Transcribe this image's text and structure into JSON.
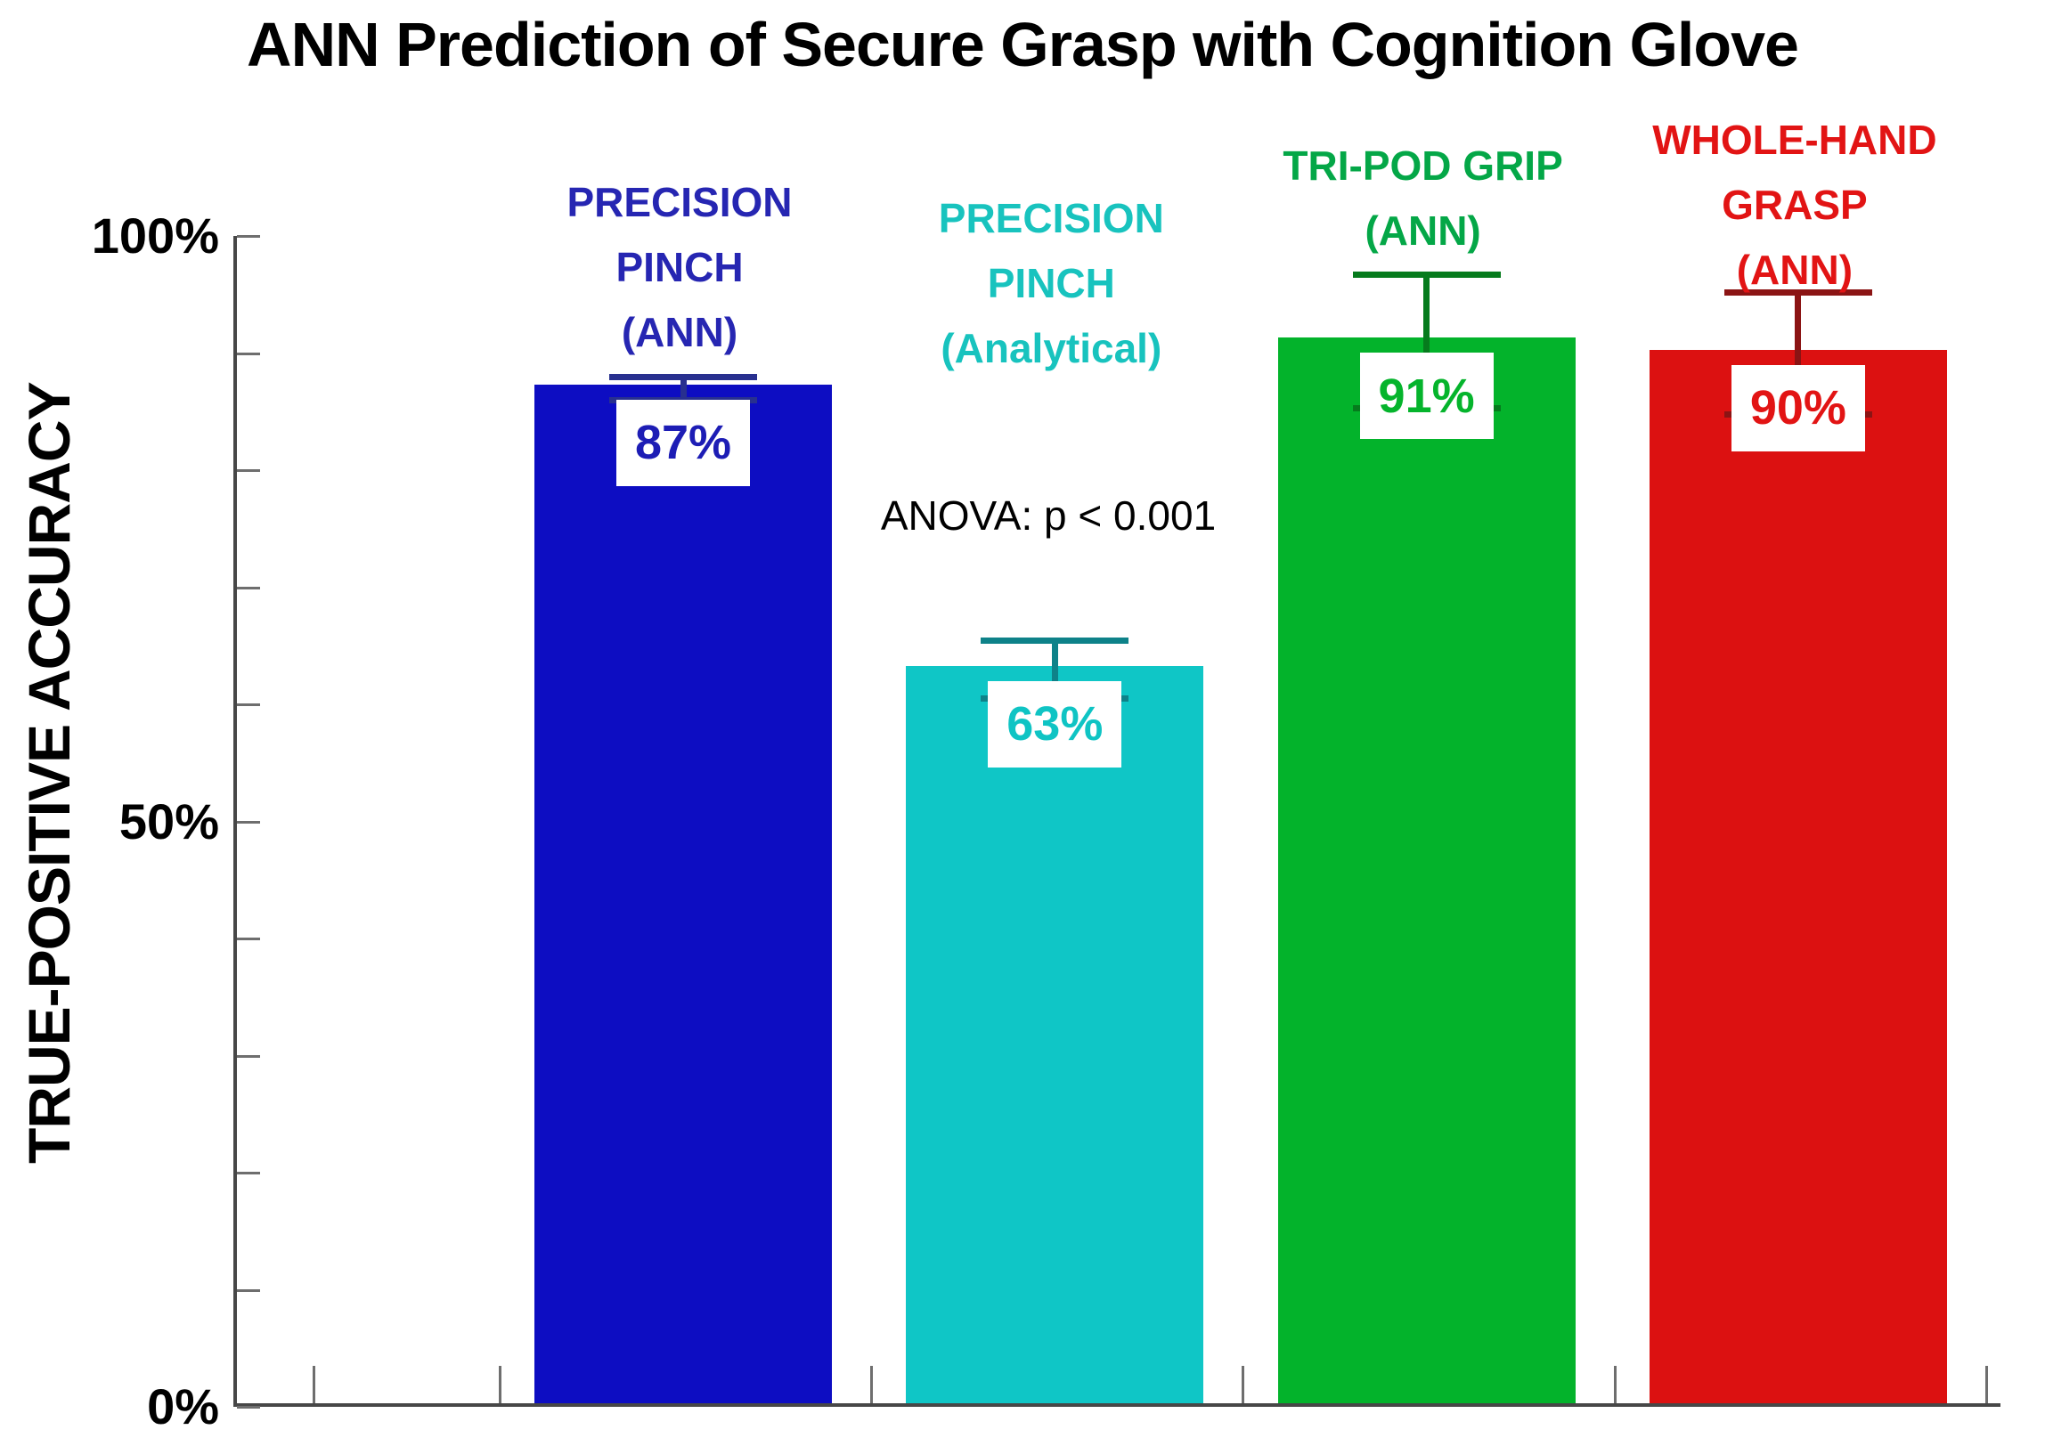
{
  "chart_data": {
    "type": "bar",
    "title": "ANN Prediction of Secure Grasp with Cognition Glove",
    "ylabel": "TRUE-POSITIVE ACCURACY",
    "annotation": "ANOVA: p < 0.001",
    "ylim": [
      0,
      100
    ],
    "ytick_labels": [
      "100%",
      "50%",
      "0%"
    ],
    "ytick_values": [
      100,
      50,
      0
    ],
    "y_minor_tick_step": 10,
    "x_minor_tick_count": 10,
    "grid": false,
    "legend": "none",
    "axis_color": "#474747",
    "tick_color": "#6E6E6E",
    "text_color": "#000000",
    "categories": [
      {
        "id": "precision-pinch-ann",
        "label_lines": [
          "PRECISION",
          "PINCH",
          "(ANN)"
        ],
        "value": 87,
        "value_label": "87%",
        "error": 1.0,
        "bar_color": "#0D0DC2",
        "error_color": "#28308F",
        "label_color": "#2626B2",
        "value_color": "#1D1DB5"
      },
      {
        "id": "precision-pinch-analytical",
        "label_lines": [
          "PRECISION",
          "PINCH",
          "(Analytical)"
        ],
        "value": 63,
        "value_label": "63%",
        "error": 2.5,
        "bar_color": "#0FC6C6",
        "error_color": "#0E8289",
        "label_color": "#18C3BE",
        "value_color": "#0FC4C4"
      },
      {
        "id": "tri-pod-grip-ann",
        "label_lines": [
          "TRI-POD GRIP",
          "(ANN)"
        ],
        "value": 91,
        "value_label": "91%",
        "error": 5.7,
        "bar_color": "#03B32B",
        "error_color": "#067B1D",
        "label_color": "#04A747",
        "value_color": "#05B42C"
      },
      {
        "id": "whole-hand-grasp-ann",
        "label_lines": [
          "WHOLE-HAND",
          "GRASP",
          "(ANN)"
        ],
        "value": 90,
        "value_label": "90%",
        "error": 5.2,
        "bar_color": "#DC1111",
        "error_color": "#8B1414",
        "label_color": "#E21414",
        "value_color": "#E21414"
      }
    ]
  }
}
